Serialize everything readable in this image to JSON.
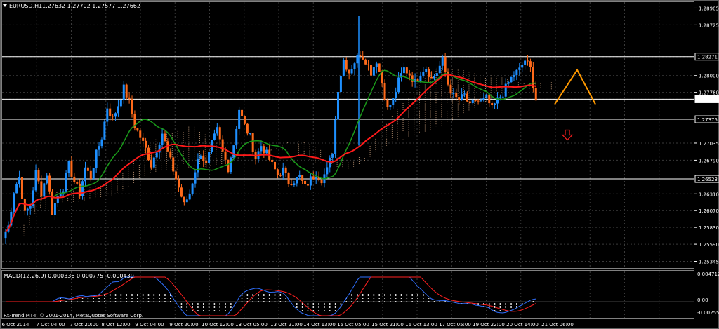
{
  "header": {
    "symbol": "EURUSD,H1",
    "ohlc": "1.27632 1.27702 1.27577 1.27662"
  },
  "macd": {
    "label": "MACD(12,26,9) 0.000336 0.000775 -0.000439",
    "axis": [
      "0.004712",
      "0.00",
      "-0.002558"
    ]
  },
  "copyright": "FX-Trend MT4, © 2001-2014, MetaQuotes Software Corp.",
  "colors": {
    "bull": "#1e90ff",
    "bear": "#ff6a1a",
    "ma_red": "#ff1a1a",
    "ma_green": "#1a9a1a",
    "cloud": "#e8b890",
    "hline": "#ffffff",
    "forecast": "#ff9900",
    "arrow_down": "#ff2020",
    "grid": "#3a3a3a"
  },
  "chart_data": {
    "type": "candlestick",
    "symbol": "EURUSD",
    "timeframe": "H1",
    "y_ticks": [
      "1.28965",
      "1.28725",
      "1.28271",
      "1.28000",
      "1.27760",
      "1.27662",
      "1.27375",
      "1.27035",
      "1.26790",
      "1.26523",
      "1.26310",
      "1.26070",
      "1.25830",
      "1.25590",
      "1.25345"
    ],
    "ylim": [
      1.2525,
      1.2905
    ],
    "x_ticks": [
      "6 Oct 2014",
      "7 Oct 04:00",
      "7 Oct 20:00",
      "8 Oct 12:00",
      "9 Oct 04:00",
      "9 Oct 20:00",
      "10 Oct 12:00",
      "13 Oct 05:00",
      "13 Oct 21:00",
      "14 Oct 13:00",
      "15 Oct 05:00",
      "15 Oct 21:00",
      "16 Oct 13:00",
      "17 Oct 05:00",
      "19 Oct 22:00",
      "20 Oct 14:00",
      "21 Oct 06:00"
    ],
    "horizontal_levels": [
      1.28271,
      1.27662,
      1.27375,
      1.26523
    ],
    "current_price": 1.27662,
    "path": [
      1.2568,
      1.2585,
      1.2635,
      1.2655,
      1.2602,
      1.2615,
      1.2662,
      1.2632,
      1.266,
      1.2605,
      1.2628,
      1.264,
      1.2672,
      1.2648,
      1.2632,
      1.2668,
      1.2655,
      1.2688,
      1.2712,
      1.2755,
      1.2738,
      1.2758,
      1.2782,
      1.2762,
      1.2728,
      1.2712,
      1.2695,
      1.2672,
      1.2695,
      1.2718,
      1.269,
      1.2665,
      1.264,
      1.2615,
      1.2632,
      1.2665,
      1.269,
      1.2672,
      1.2702,
      1.2722,
      1.269,
      1.2668,
      1.2702,
      1.2752,
      1.2728,
      1.2712,
      1.2682,
      1.27,
      1.2688,
      1.2672,
      1.2658,
      1.2665,
      1.2648,
      1.265,
      1.2655,
      1.264,
      1.2652,
      1.266,
      1.2652,
      1.2665,
      1.2692,
      1.2782,
      1.2822,
      1.2805,
      1.282,
      1.2832,
      1.2822,
      1.2805,
      1.2822,
      1.279,
      1.2752,
      1.2765,
      1.2792,
      1.281,
      1.2802,
      1.279,
      1.2805,
      1.2812,
      1.2795,
      1.2805,
      1.2822,
      1.2788,
      1.277,
      1.2765,
      1.2772,
      1.2755,
      1.2765,
      1.2762,
      1.2768,
      1.2752,
      1.2765,
      1.2775,
      1.279,
      1.2802,
      1.2808,
      1.2822,
      1.281,
      1.2766
    ]
  }
}
